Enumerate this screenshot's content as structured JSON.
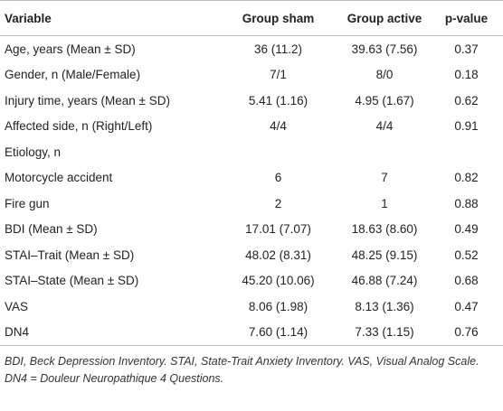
{
  "table": {
    "header": [
      "Variable",
      "Group sham",
      "Group active",
      "p-value"
    ],
    "rows": [
      [
        "Age, years (Mean ± SD)",
        "36 (11.2)",
        "39.63 (7.56)",
        "0.37"
      ],
      [
        "Gender, n (Male/Female)",
        "7/1",
        "8/0",
        "0.18"
      ],
      [
        "Injury time, years (Mean ± SD)",
        "5.41 (1.16)",
        "4.95 (1.67)",
        "0.62"
      ],
      [
        "Affected side, n (Right/Left)",
        "4/4",
        "4/4",
        "0.91"
      ],
      [
        "Etiology, n"
      ],
      [
        "Motorcycle accident",
        "6",
        "7",
        "0.82"
      ],
      [
        "Fire gun",
        "2",
        "1",
        "0.88"
      ],
      [
        "BDI (Mean ± SD)",
        "17.01 (7.07)",
        "18.63 (8.60)",
        "0.49"
      ],
      [
        "STAI–Trait (Mean ± SD)",
        "48.02 (8.31)",
        "48.25 (9.15)",
        "0.52"
      ],
      [
        "STAI–State (Mean ± SD)",
        "45.20 (10.06)",
        "46.88 (7.24)",
        "0.68"
      ],
      [
        "VAS",
        "8.06 (1.98)",
        "8.13 (1.36)",
        "0.47"
      ],
      [
        "DN4",
        "7.60 (1.14)",
        "7.33 (1.15)",
        "0.76"
      ]
    ],
    "footnote": "BDI, Beck Depression Inventory. STAI, State-Trait Anxiety Inventory. VAS, Visual Analog Scale. DN4 = Douleur Neuropathique 4 Questions."
  }
}
